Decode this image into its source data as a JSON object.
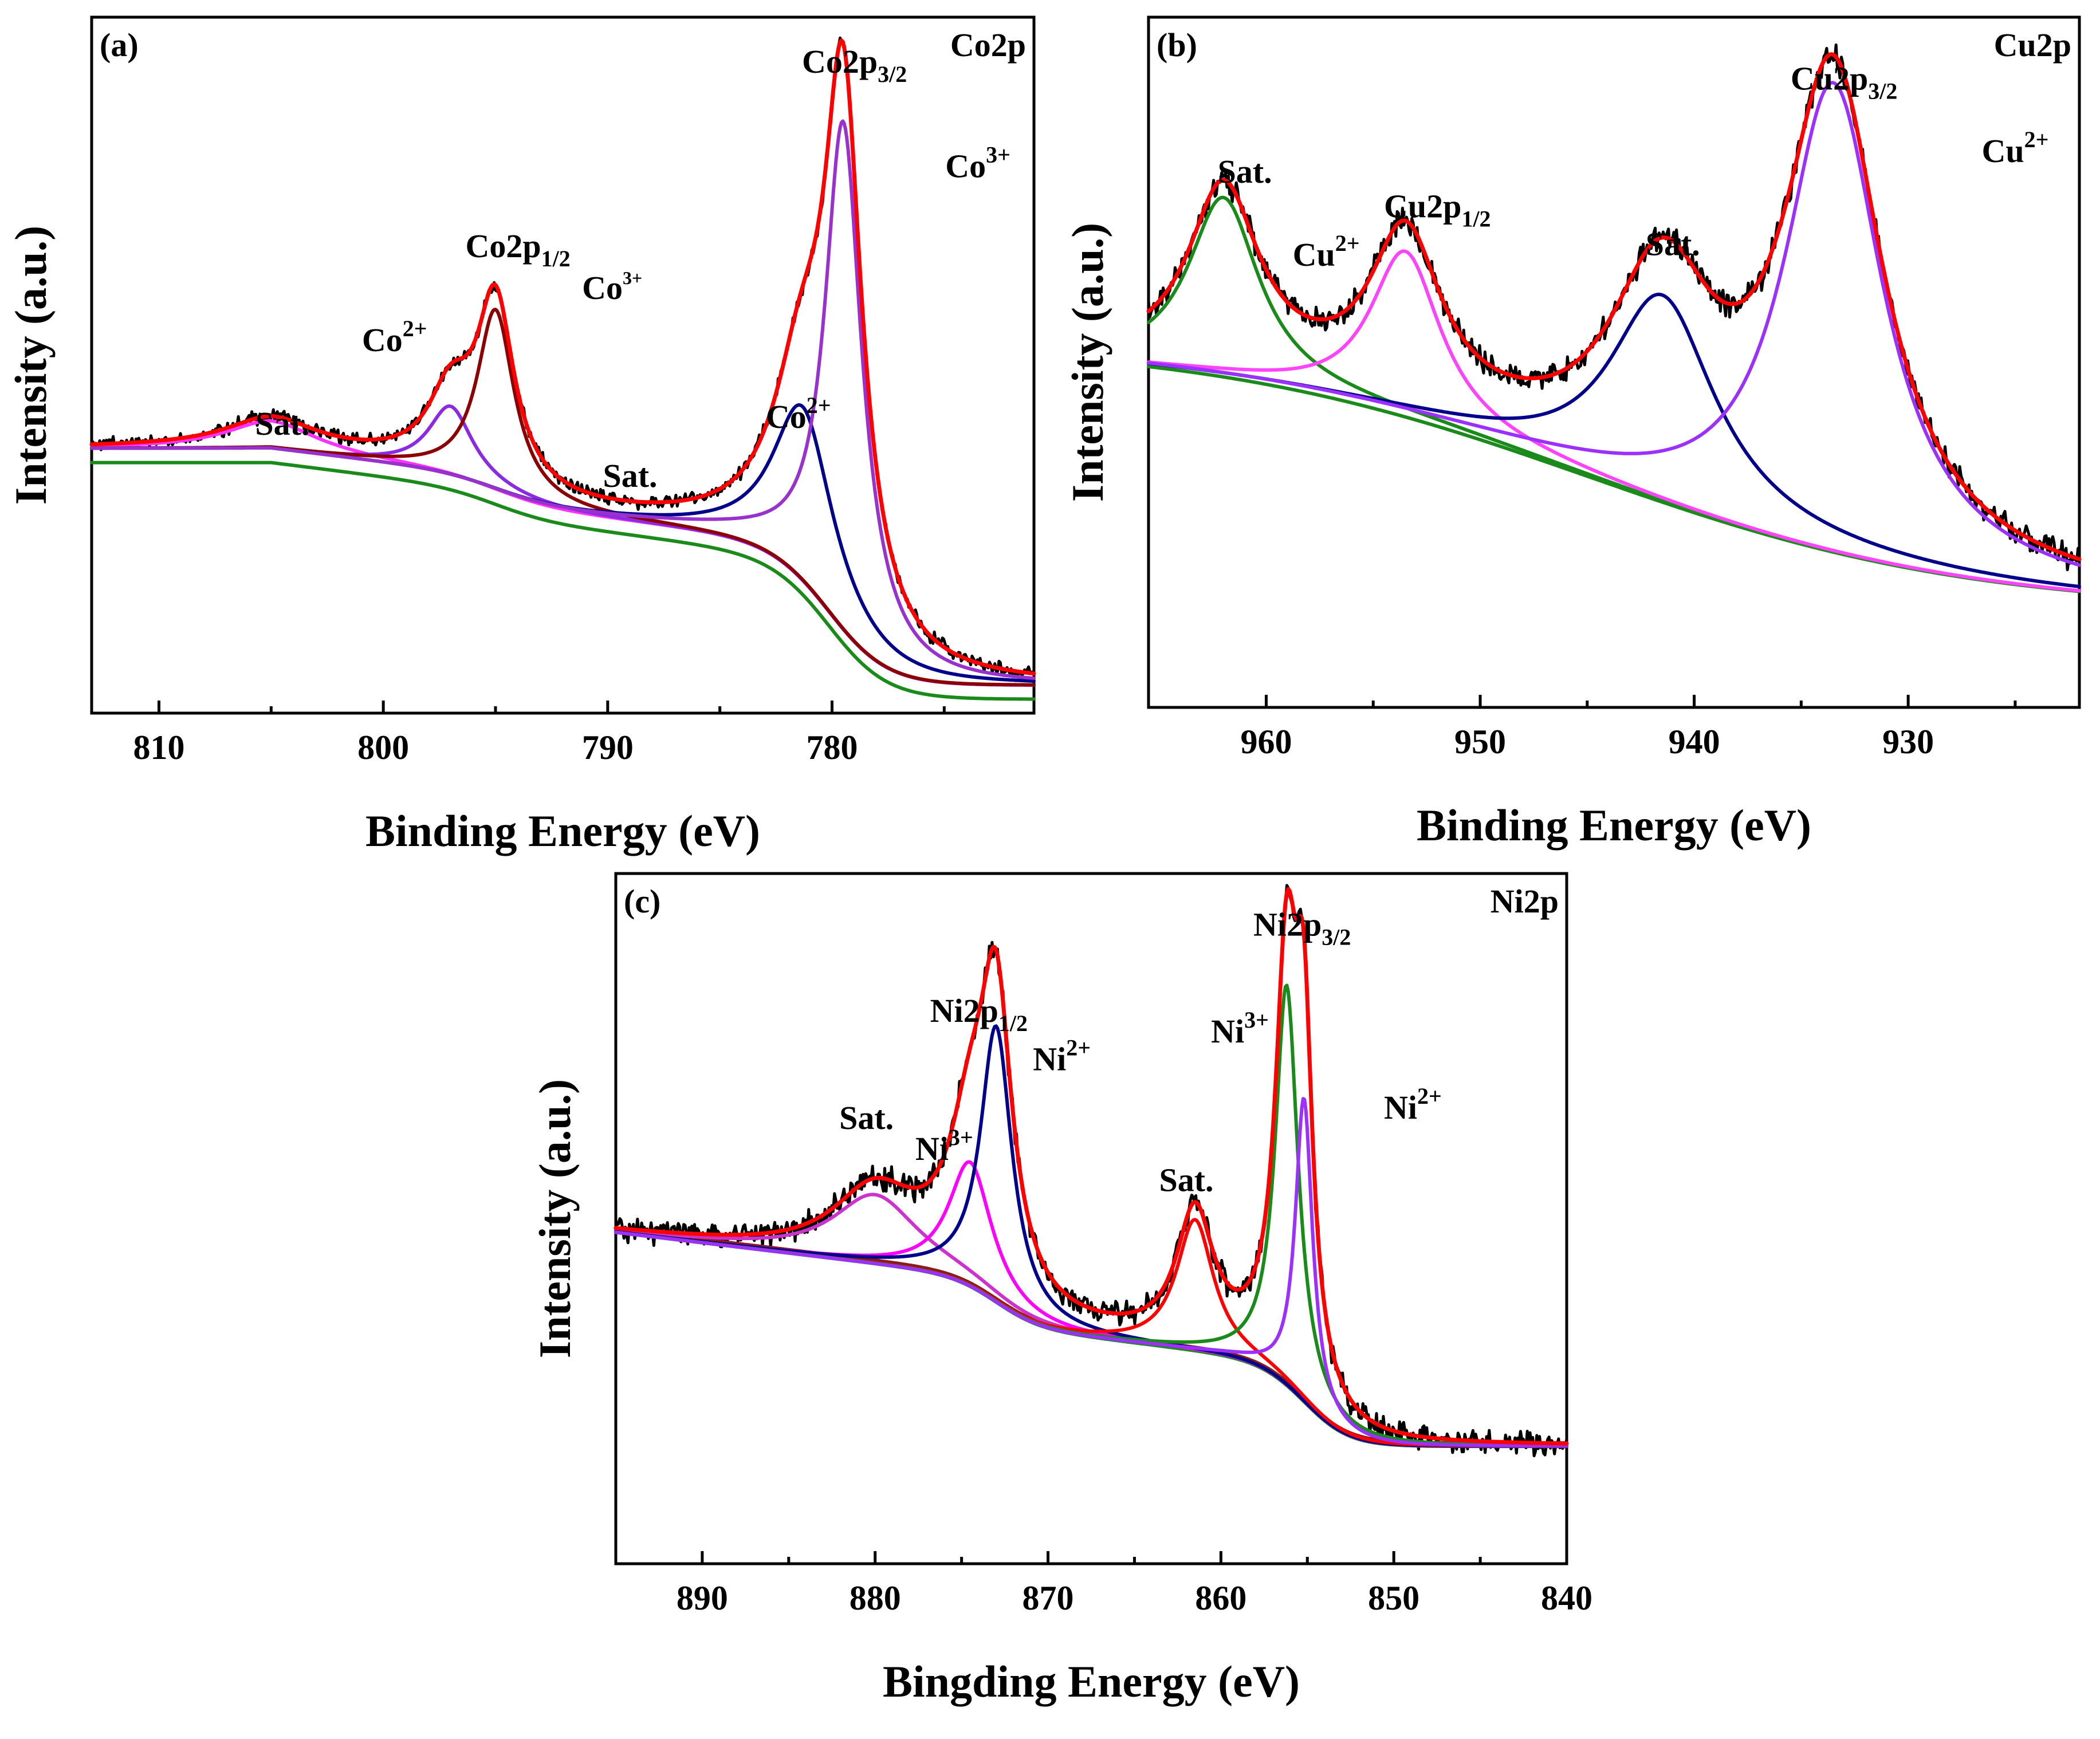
{
  "colors": {
    "raw": "#000000",
    "envelope": "#ff0000",
    "background": "#1a8a1a",
    "co_sat": "#ff33ff",
    "co2_peak": "#8a2be2",
    "co3_p12": "#8b0000",
    "co2_p32": "#00008b",
    "co3_p32": "#9932cc",
    "cu_sat1": "#1a8a1a",
    "cu2_p12": "#ff44ff",
    "cu_sat2": "#00008b",
    "cu2_p32": "#9b30ff",
    "ni_sat1": "#cc33cc",
    "ni3_p12": "#ff00ff",
    "ni2_p12": "#00008b",
    "ni_sat2": "#ff0000",
    "ni3_p32": "#1a8a1a",
    "ni2_p32": "#9b30ff",
    "ni_bg": "#8b1a1a"
  },
  "chart_data": [
    {
      "id": "a",
      "type": "line",
      "panel_label": "(a)",
      "tag": "Co2p",
      "xlabel": "Binding Energy (eV)",
      "ylabel": "Intensity (a.u.)",
      "xlim": [
        813,
        771
      ],
      "ylim": [
        0,
        1
      ],
      "x_ticks": [
        "810",
        "800",
        "790",
        "780"
      ],
      "x_tick_values": [
        810,
        800,
        790,
        780
      ],
      "background": {
        "high": 0.38,
        "step1_at": 795,
        "step1": 0.04,
        "slope": 0.004,
        "step2_at": 780,
        "step2": 0.2,
        "low": 0.04
      },
      "peaks": [
        {
          "name": "Sat.",
          "center": 805,
          "height": 0.04,
          "width": 2.5,
          "color": "co_sat"
        },
        {
          "name": "Co2+",
          "center": 797,
          "height": 0.1,
          "width": 1.2,
          "color": "co2_peak"
        },
        {
          "name": "Co3+",
          "center": 795,
          "height": 0.26,
          "width": 1.0,
          "color": "co3_p12"
        },
        {
          "name": "Co2+",
          "center": 781.3,
          "height": 0.25,
          "width": 1.6,
          "color": "co2_p32"
        },
        {
          "name": "Co3+",
          "center": 779.5,
          "height": 0.73,
          "width": 1.0,
          "color": "co3_p32"
        }
      ],
      "annotations": [
        {
          "text": "Sat.",
          "x": 804.5,
          "y": 0.4
        },
        {
          "text": "Co2p",
          "sub": "1/2",
          "x": 794,
          "y": 0.655
        },
        {
          "text": "Co",
          "sup": "3+",
          "x": 789.8,
          "y": 0.595,
          "small": true
        },
        {
          "text": "Co",
          "sup": "2+",
          "x": 799.5,
          "y": 0.52
        },
        {
          "text": "Sat.",
          "x": 789,
          "y": 0.325
        },
        {
          "text": "Co",
          "sup": "2+",
          "x": 781.5,
          "y": 0.41
        },
        {
          "text": "Co2p",
          "sub": "3/2",
          "x": 779,
          "y": 0.92
        },
        {
          "text": "Co",
          "sup": "3+",
          "x": 773.5,
          "y": 0.77
        }
      ]
    },
    {
      "id": "b",
      "type": "line",
      "panel_label": "(b)",
      "tag": "Cu2p",
      "xlabel": "Binding Energy (eV)",
      "ylabel": "Intensity (a.u.)",
      "xlim": [
        965.5,
        922
      ],
      "ylim": [
        0,
        1
      ],
      "x_ticks": [
        "960",
        "950",
        "940",
        "930"
      ],
      "x_tick_values": [
        960,
        950,
        940,
        930
      ],
      "background": {
        "high": 0.53,
        "low": 0.14,
        "center": 945,
        "width": 9
      },
      "peaks": [
        {
          "name": "Sat.",
          "center": 962,
          "height": 0.26,
          "width": 2.0,
          "color": "cu_sat1"
        },
        {
          "name": "Cu2+",
          "center": 953.5,
          "height": 0.24,
          "width": 2.0,
          "color": "cu2_p12"
        },
        {
          "name": "Sat.",
          "center": 941.5,
          "height": 0.3,
          "width": 3.0,
          "color": "cu_sat2"
        },
        {
          "name": "Cu2+",
          "center": 933.5,
          "height": 0.68,
          "width": 2.8,
          "color": "cu2_p32"
        }
      ],
      "annotations": [
        {
          "text": "Sat.",
          "x": 961,
          "y": 0.76
        },
        {
          "text": "Cu",
          "sup": "2+",
          "x": 957.2,
          "y": 0.64
        },
        {
          "text": "Cu2p",
          "sub": "1/2",
          "x": 952,
          "y": 0.71
        },
        {
          "text": "Sat.",
          "x": 941,
          "y": 0.655
        },
        {
          "text": "Cu2p",
          "sub": "3/2",
          "x": 933,
          "y": 0.895
        },
        {
          "text": "Cu",
          "sup": "2+",
          "x": 925,
          "y": 0.79
        }
      ]
    },
    {
      "id": "c",
      "type": "line",
      "panel_label": "(c)",
      "tag": "Ni2p",
      "xlabel": "Bingding Energy (eV)",
      "ylabel": "Intensity (a.u.)",
      "xlim": [
        895,
        840
      ],
      "ylim": [
        0,
        1
      ],
      "x_ticks": [
        "890",
        "880",
        "870",
        "860",
        "850",
        "840"
      ],
      "x_tick_values": [
        890,
        880,
        870,
        860,
        850,
        840
      ],
      "background": {
        "high": 0.485,
        "step1_at": 873,
        "step1": 0.07,
        "slope": 0.003,
        "step2_at": 855,
        "step2": 0.12,
        "low": 0.17
      },
      "peaks": [
        {
          "name": "Sat.",
          "center": 880,
          "height": 0.1,
          "width": 3.0,
          "color": "ni_sat1"
        },
        {
          "name": "Ni3+",
          "center": 874.5,
          "height": 0.18,
          "width": 1.5,
          "color": "ni3_p12"
        },
        {
          "name": "Ni2+",
          "center": 873,
          "height": 0.4,
          "width": 1.1,
          "color": "ni2_p12"
        },
        {
          "name": "Sat.",
          "center": 861.5,
          "height": 0.19,
          "width": 1.3,
          "color": "ni_sat2"
        },
        {
          "name": "Ni3+",
          "center": 856.2,
          "height": 0.58,
          "width": 0.8,
          "color": "ni3_p32"
        },
        {
          "name": "Ni2+",
          "center": 855.2,
          "height": 0.44,
          "width": 0.6,
          "color": "ni2_p32"
        }
      ],
      "annotations": [
        {
          "text": "Sat.",
          "x": 880.5,
          "y": 0.63
        },
        {
          "text": "Ni",
          "sup": "3+",
          "x": 876,
          "y": 0.585
        },
        {
          "text": "Ni2p",
          "sub": "1/2",
          "x": 874,
          "y": 0.785
        },
        {
          "text": "Ni",
          "sup": "2+",
          "x": 869.2,
          "y": 0.715
        },
        {
          "text": "Sat.",
          "x": 862,
          "y": 0.54
        },
        {
          "text": "Ni",
          "sup": "3+",
          "x": 858.9,
          "y": 0.755
        },
        {
          "text": "Ni2p",
          "sub": "3/2",
          "x": 855.3,
          "y": 0.91
        },
        {
          "text": "Ni",
          "sup": "2+",
          "x": 848.9,
          "y": 0.645
        }
      ]
    }
  ]
}
